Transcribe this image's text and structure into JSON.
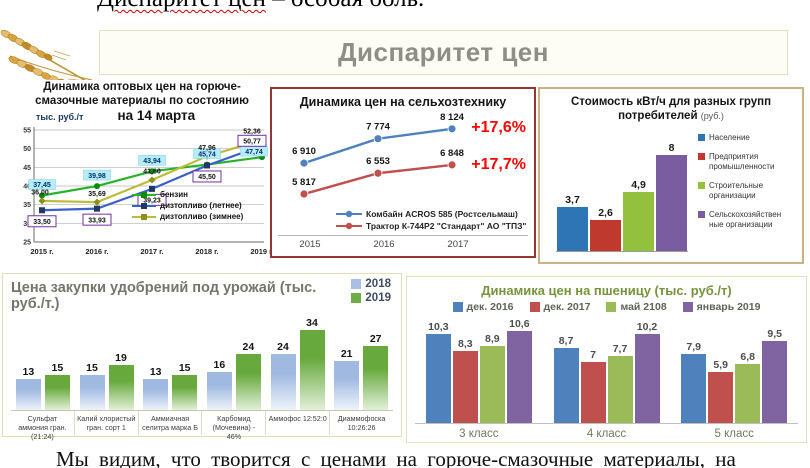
{
  "document": {
    "top_text_highlighted": "Диспаритет цен",
    "top_text_rest": " – особая боль.",
    "bottom_text": "Мы видим, что творится с ценами на горюче-смазочные материалы, на"
  },
  "header": {
    "title": "Диспаритет цен"
  },
  "icons": {
    "wheat": "wheat-ears-decoration"
  },
  "colors": {
    "accent_red": "#ff0000",
    "maroon_border": "#943634",
    "tan_border": "#c9b384",
    "pale_border": "#e0dfb8"
  },
  "chart_data": [
    {
      "id": "fuel",
      "type": "line",
      "title": "Динамика оптовых цен на горюче-смазочные материалы по состоянию на 14 марта",
      "title_lines": [
        "Динамика оптовых цен на горюче-",
        "смазочные материалы по состоянию",
        "на 14 марта"
      ],
      "ylabel": "тыс. руб./т",
      "categories": [
        "2015 г.",
        "2016 г.",
        "2017 г.",
        "2018 г.",
        "2019 г."
      ],
      "ylim": [
        25,
        55
      ],
      "yticks": [
        55,
        50,
        45,
        40,
        35,
        30,
        25
      ],
      "grid": true,
      "legend_position": "inside-right",
      "series": [
        {
          "name": "бензин",
          "color": "#27b227",
          "marker_color": "#0e8a0e",
          "values": [
            37.45,
            39.98,
            43.94,
            45.74,
            47.74
          ],
          "labels": [
            "37,45",
            "39,98",
            "43,94",
            "45,74",
            "47,74"
          ],
          "label_style": "cyan"
        },
        {
          "name": "дизтопливо (летнее)",
          "color": "#3a5fc8",
          "marker_color": "#1f3864",
          "values": [
            33.5,
            33.93,
            39.23,
            45.5,
            50.77
          ],
          "labels": [
            "33,50",
            "33,93",
            "39,23",
            "45,50",
            "50,77"
          ],
          "label_style": "boxed"
        },
        {
          "name": "дизтопливо (зимнее)",
          "color": "#bcbc3c",
          "marker_color": "#8f8f20",
          "values": [
            36.0,
            35.69,
            41.6,
            47.96,
            52.36
          ],
          "labels": [
            "36,00",
            "35,69",
            "41,60",
            "47,96",
            "52,36"
          ],
          "label_style": "plain"
        }
      ]
    },
    {
      "id": "machinery",
      "type": "line",
      "title": "Динамика цен на сельхозтехнику",
      "categories": [
        "2015",
        "2016",
        "2017"
      ],
      "ylim": [
        5500,
        8400
      ],
      "grid": false,
      "legend_position": "bottom",
      "pct_color": "#ff0000",
      "series": [
        {
          "name": "Комбайн ACROS 585 (Ростсельмаш)",
          "color": "#4f81bd",
          "values": [
            6910,
            7774,
            8124
          ],
          "labels": [
            "6 910",
            "7 774",
            "8 124"
          ],
          "pct": "+17,6%"
        },
        {
          "name": "Трактор К-744Р2 \"Стандарт\" АО \"ТПЗ\"",
          "color": "#c0504d",
          "values": [
            5817,
            6553,
            6848
          ],
          "labels": [
            "5 817",
            "6 553",
            "6 848"
          ],
          "pct": "+17,7%"
        }
      ]
    },
    {
      "id": "electricity",
      "type": "bar",
      "title": "Стоимость кВт/ч для разных групп потребителей",
      "title_line1": "Стоимость кВт/ч для разных групп",
      "title_line2": "потребителей",
      "title_unit": "(руб.)",
      "ylim": [
        0,
        8
      ],
      "legend_position": "right",
      "bars": [
        {
          "name": "Население",
          "value": 3.7,
          "label": "3,7",
          "color": "#2e75b6"
        },
        {
          "name": "Предприятия промышленности",
          "value": 2.6,
          "label": "2,6",
          "color": "#c0392f"
        },
        {
          "name": "Строительные организации",
          "value": 4.9,
          "label": "4,9",
          "color": "#94c13d"
        },
        {
          "name": "Сельскохозяйствен ные организации",
          "value": 8,
          "label": "8",
          "color": "#7a5ca0"
        }
      ]
    },
    {
      "id": "fertilizer",
      "type": "grouped-bar",
      "title": "Цена закупки удобрений под урожай (тыс. руб./т.)",
      "categories": [
        "Сульфат аммония гран. (21:24)",
        "Калий хлористый гран. сорт 1",
        "Аммиачная селитра марка Б",
        "Карбомид (Мочевина) - 46%",
        "Аммофос 12:52:0",
        "Диаммофоска 10:26:26"
      ],
      "ylim": [
        0,
        34
      ],
      "legend_position": "top-right",
      "series": [
        {
          "name": "2018",
          "color": "#a9c0e4",
          "gradient_top": "#9fb9e0",
          "gradient_bottom": "#eef3fb",
          "values": [
            13,
            15,
            13,
            16,
            24,
            21
          ],
          "labels": [
            "13",
            "15",
            "13",
            "16",
            "24",
            "21"
          ]
        },
        {
          "name": "2019",
          "color": "#6fad47",
          "gradient_top": "#67a93c",
          "gradient_bottom": "#e2f0d9",
          "values": [
            15,
            19,
            15,
            24,
            34,
            27
          ],
          "labels": [
            "15",
            "19",
            "15",
            "24",
            "34",
            "27"
          ]
        }
      ]
    },
    {
      "id": "wheat_prices",
      "type": "grouped-bar",
      "title": "Динамика цен на пшеницу (тыс. руб./т)",
      "categories": [
        "3 класс",
        "4 класс",
        "5 класс"
      ],
      "ylim": [
        0,
        10.6
      ],
      "legend_position": "top",
      "series": [
        {
          "name": "дек. 2016",
          "color": "#4f81bd",
          "values": [
            10.3,
            8.7,
            7.9
          ],
          "labels": [
            "10,3",
            "8,7",
            "7,9"
          ]
        },
        {
          "name": "дек. 2017",
          "color": "#c0504d",
          "values": [
            8.3,
            7,
            5.9
          ],
          "labels": [
            "8,3",
            "7",
            "5,9"
          ]
        },
        {
          "name": "май 2108",
          "color": "#9bbb59",
          "values": [
            8.9,
            7.7,
            6.8
          ],
          "labels": [
            "8,9",
            "7,7",
            "6,8"
          ]
        },
        {
          "name": "январь 2019",
          "color": "#8064a2",
          "values": [
            10.6,
            10.2,
            9.5
          ],
          "labels": [
            "10,6",
            "10,2",
            "9,5"
          ]
        }
      ]
    }
  ]
}
